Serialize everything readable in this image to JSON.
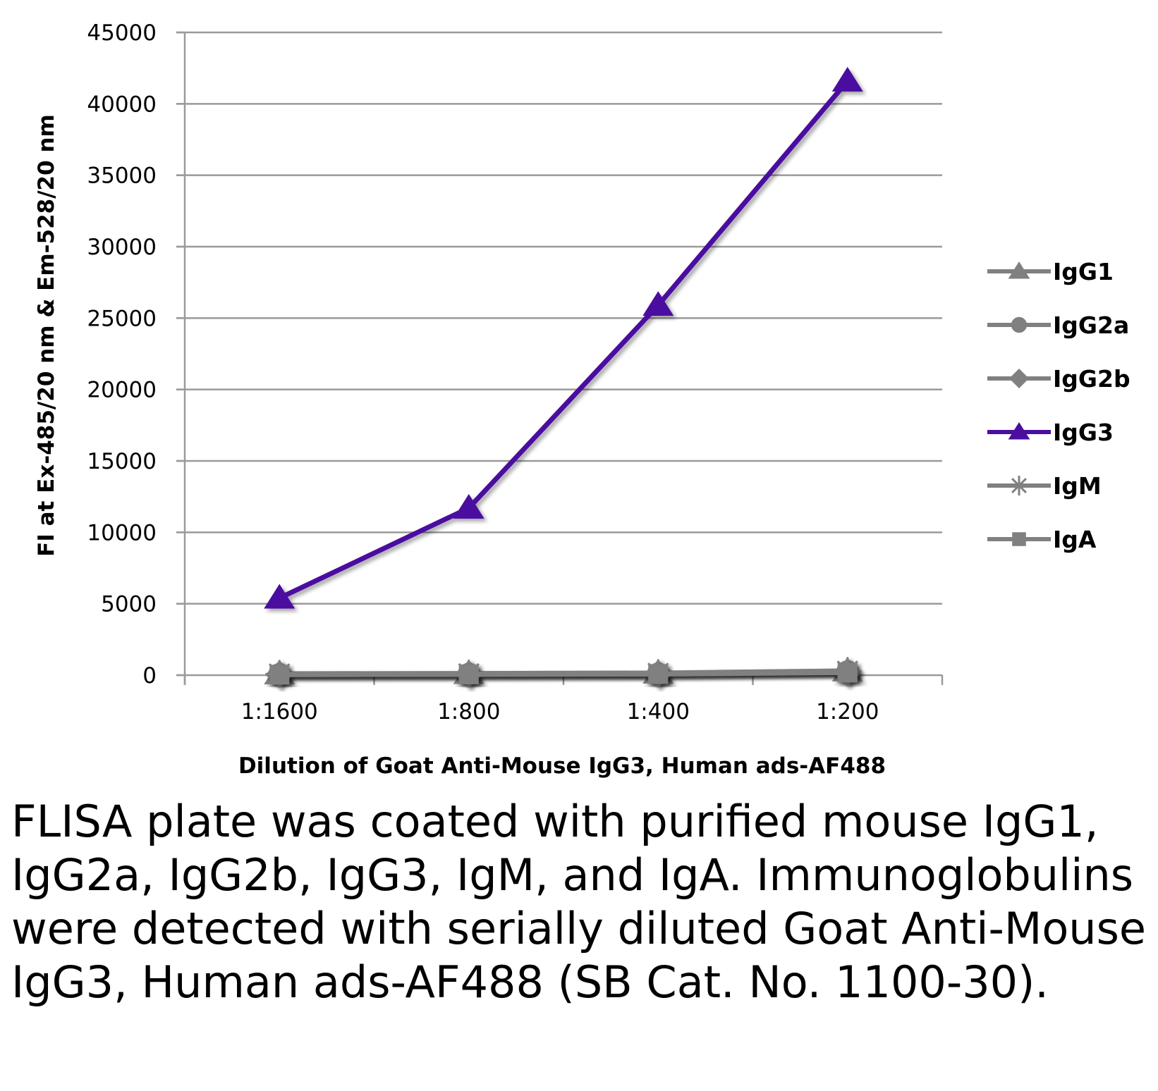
{
  "chart_data": {
    "type": "line",
    "categories": [
      "1:1600",
      "1:800",
      "1:400",
      "1:200"
    ],
    "ylabel": "FI at Ex-485/20 nm & Em-528/20 nm",
    "xlabel": "Dilution of Goat Anti-Mouse IgG3, Human ads-AF488",
    "ylim": [
      0,
      45000
    ],
    "yticks": [
      0,
      5000,
      10000,
      15000,
      20000,
      25000,
      30000,
      35000,
      40000,
      45000
    ],
    "grid": true,
    "legend_position": "right",
    "series": [
      {
        "name": "IgG1",
        "marker": "triangle",
        "color": "#808080",
        "values": [
          100,
          120,
          150,
          300
        ]
      },
      {
        "name": "IgG2a",
        "marker": "circle",
        "color": "#808080",
        "values": [
          60,
          80,
          100,
          250
        ]
      },
      {
        "name": "IgG2b",
        "marker": "diamond",
        "color": "#808080",
        "values": [
          50,
          70,
          90,
          200
        ]
      },
      {
        "name": "IgG3",
        "marker": "triangle",
        "color": "#4b0fa0",
        "values": [
          5400,
          11700,
          25900,
          41600
        ]
      },
      {
        "name": "IgM",
        "marker": "asterisk",
        "color": "#808080",
        "values": [
          80,
          100,
          130,
          280
        ]
      },
      {
        "name": "IgA",
        "marker": "square",
        "color": "#808080",
        "values": [
          40,
          60,
          80,
          180
        ]
      }
    ]
  },
  "caption": "FLISA plate was coated with purified mouse IgG1, IgG2a, IgG2b, IgG3, IgM, and IgA. Immunoglobulins were detected with serially diluted Goat Anti-Mouse IgG3, Human ads-AF488 (SB Cat. No. 1100-30)."
}
